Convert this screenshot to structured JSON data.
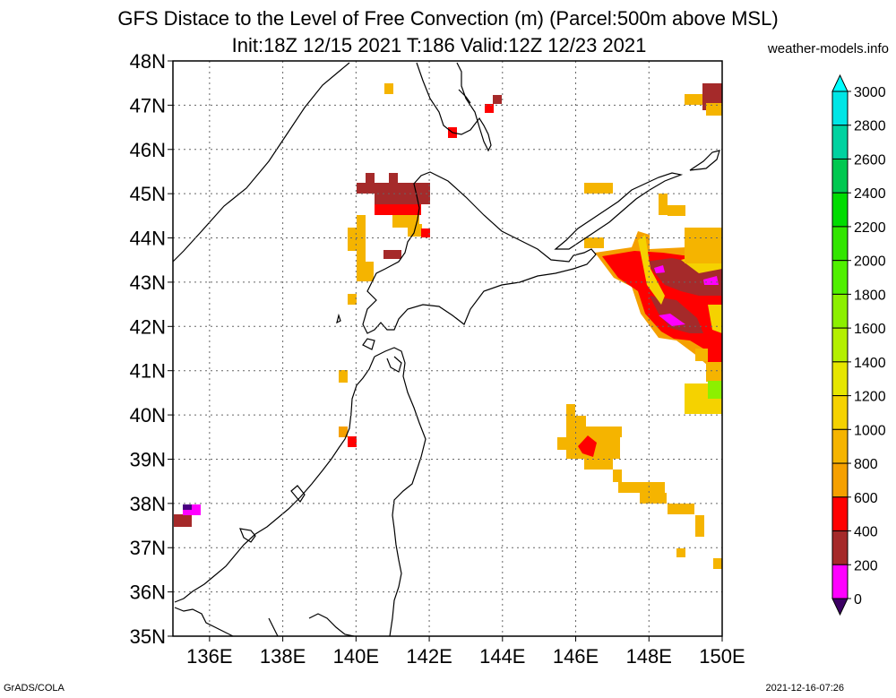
{
  "title": {
    "line1": "GFS Distace to the Level of Free Convection (m) (Parcel:500m above MSL)",
    "line2": "Init:18Z 12/15 2021 T:186 Valid:12Z 12/23 2021",
    "site": "weather-models.info"
  },
  "footer": {
    "left": "GrADS/COLA",
    "right": "2021-12-16-07:26"
  },
  "map": {
    "lat_labels": [
      "48N",
      "47N",
      "46N",
      "45N",
      "44N",
      "43N",
      "42N",
      "41N",
      "40N",
      "39N",
      "38N",
      "37N",
      "36N",
      "35N"
    ],
    "lon_labels": [
      "136E",
      "138E",
      "140E",
      "142E",
      "144E",
      "146E",
      "148E",
      "150E"
    ],
    "lat_range": [
      35,
      48
    ],
    "lon_range": [
      135,
      150
    ],
    "grid": true
  },
  "colorbar": {
    "labels": [
      "3000",
      "2800",
      "2600",
      "2400",
      "2200",
      "2000",
      "1800",
      "1600",
      "1400",
      "1200",
      "1000",
      "800",
      "600",
      "400",
      "200",
      "0"
    ],
    "colors": [
      "#00e6e6",
      "#00d2a0",
      "#00c850",
      "#00dc00",
      "#32e600",
      "#50f000",
      "#8cf000",
      "#b4f000",
      "#e6e600",
      "#f5d200",
      "#f5b400",
      "#f5a000",
      "#ff0000",
      "#a52a2a",
      "#ff00ff",
      "#4b0082"
    ]
  },
  "features": {
    "coast_color": "#000000",
    "field_colors": {
      "purple": "#4b0082",
      "magenta": "#ff00ff",
      "brown": "#a52a2a",
      "red": "#ff0000",
      "orange": "#f5a000",
      "light_orange": "#f5b400",
      "yellow_orange": "#f5d200",
      "green": "#8cf000"
    }
  }
}
